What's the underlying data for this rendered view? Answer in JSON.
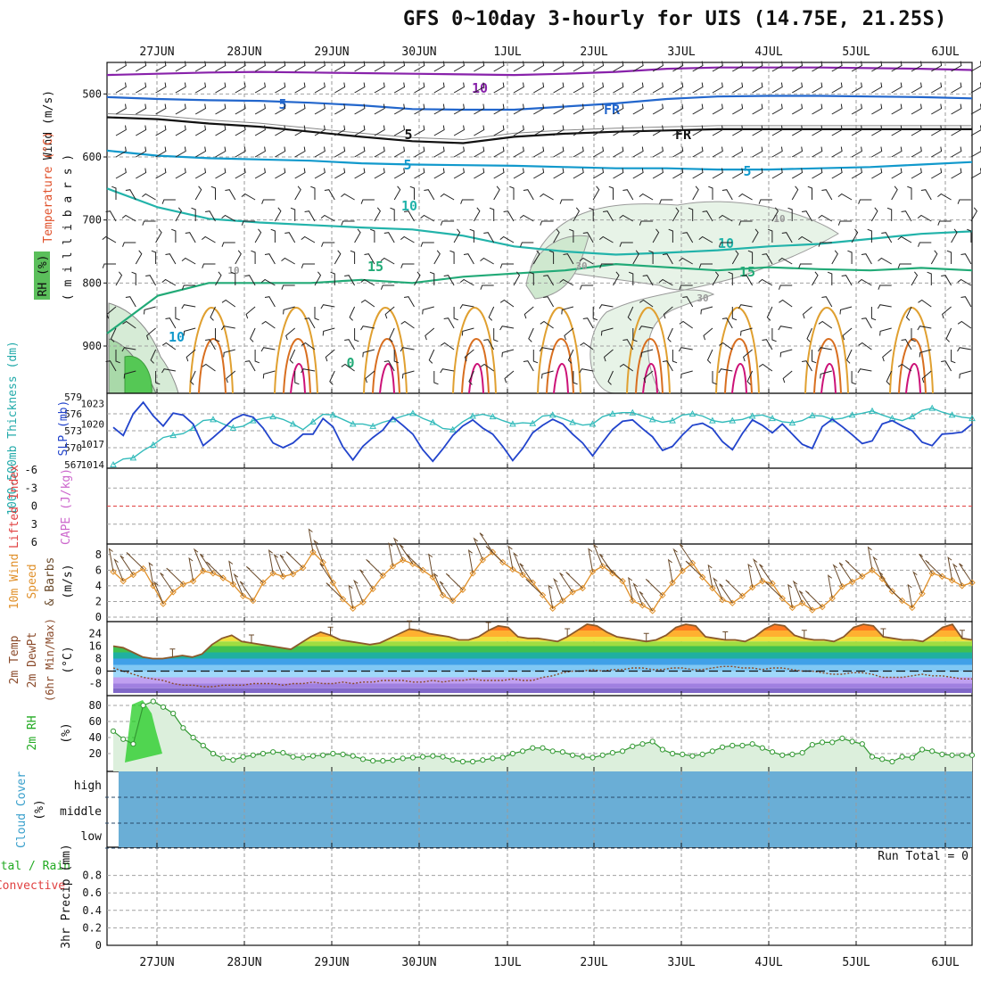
{
  "title": "GFS 0~10day 3-hourly for UIS (14.75E, 21.25S)",
  "date_labels": [
    "27JUN",
    "28JUN",
    "29JUN",
    "30JUN",
    "1JUL",
    "2JUL",
    "3JUL",
    "4JUL",
    "5JUL",
    "6JUL"
  ],
  "panels": {
    "upper": {
      "ylabel_wind": "Wind (m/s)",
      "ylabel_temp": "Temperature (°C)",
      "ylabel_rh": "RH (%)",
      "ylabel_units": "( m i l l i b a r s )",
      "ticks": [
        "500",
        "600",
        "700",
        "800",
        "900"
      ],
      "contour_labels": [
        "10",
        "5",
        "5",
        "FR",
        "FR",
        "5",
        "5",
        "10",
        "10",
        "15",
        "15",
        "10",
        "10",
        "30",
        "30",
        "10",
        "0"
      ]
    },
    "thickness": {
      "ylabel_left": "1000-500mb Thickness (dm)",
      "ylabel_right": "SLP (mb)",
      "ticks_left": [
        "579",
        "576",
        "573",
        "570",
        "567"
      ],
      "ticks_right": [
        "1023",
        "1020",
        "1017",
        "1014"
      ]
    },
    "cape": {
      "ylabel_left": "Lifted Index",
      "ylabel_right": "CAPE (J/kg)",
      "ticks": [
        "-6",
        "-3",
        "0",
        "3",
        "6"
      ]
    },
    "wind10": {
      "ylabel_1": "10m Wind",
      "ylabel_2": "Speed",
      "ylabel_3": "& Barbs",
      "ylabel_units": "(m/s)",
      "ticks": [
        "8",
        "6",
        "4",
        "2",
        "0"
      ]
    },
    "temp": {
      "ylabel_1": "2m Temp",
      "ylabel_2": "2m DewPt",
      "ylabel_3": "(6hr Min/Max)",
      "ylabel_units": "(°C)",
      "ticks": [
        "24",
        "16",
        "8",
        "0",
        "-8"
      ]
    },
    "rh": {
      "ylabel": "2m RH",
      "ylabel_units": "(%)",
      "ticks": [
        "80",
        "60",
        "40",
        "20"
      ]
    },
    "cloud": {
      "ylabel": "Cloud Cover",
      "ylabel_units": "(%)",
      "ticks": [
        "high",
        "middle",
        "low"
      ]
    },
    "precip": {
      "ylabel_1": "Total / Rain",
      "ylabel_2": "Convective",
      "ylabel_3": "3hr Precip (mm)",
      "ticks": [
        "0.8",
        "0.6",
        "0.4",
        "0.2",
        "0"
      ],
      "run_total": "Run Total = 0"
    }
  },
  "chart_data": [
    {
      "type": "line",
      "name": "thickness_slp",
      "x_unit": "3-hourly steps",
      "series": [
        {
          "name": "1000-500mb Thickness (dm)",
          "color": "#33bbbb",
          "values": [
            567.0,
            568.0,
            568.2,
            569.5,
            570.5,
            571.8,
            572.2,
            572.5,
            573.5,
            574.8,
            575.0,
            574.2,
            573.5,
            573.8,
            574.8,
            575.2,
            575.5,
            575.0,
            574.2,
            573.2,
            574.6,
            575.9,
            575.8,
            575.0,
            574.2,
            574.2,
            573.8,
            574.5,
            575.0,
            575.6,
            576.1,
            575.2,
            574.5,
            573.4,
            573.2,
            574.6,
            575.6,
            575.9,
            575.5,
            574.8,
            574.2,
            574.4,
            574.3,
            575.6,
            575.8,
            575.2,
            574.5,
            574.0,
            574.2,
            575.5,
            576.0,
            576.2,
            576.2,
            575.6,
            575.0,
            574.5,
            574.8,
            575.8,
            576.0,
            575.6,
            574.8,
            574.5,
            574.8,
            575.0,
            575.6,
            575.8,
            575.2,
            574.6,
            574.4,
            574.8,
            575.7,
            575.6,
            575.0,
            575.2,
            575.8,
            576.1,
            576.5,
            575.8,
            575.2,
            574.8,
            575.5,
            576.6,
            577.0,
            576.3,
            575.8,
            575.4,
            575.2
          ]
        },
        {
          "name": "SLP (mb)",
          "color": "#2244cc",
          "values": [
            1019.5,
            1018.3,
            1021.5,
            1023.2,
            1021.2,
            1019.7,
            1021.6,
            1021.3,
            1020.0,
            1016.8,
            1018.0,
            1019.3,
            1020.7,
            1021.4,
            1021.0,
            1019.4,
            1017.2,
            1016.5,
            1017.2,
            1018.5,
            1018.5,
            1020.8,
            1019.6,
            1016.6,
            1014.7,
            1016.7,
            1018.0,
            1019.1,
            1021.0,
            1019.8,
            1018.5,
            1016.2,
            1014.5,
            1016.3,
            1018.3,
            1019.7,
            1020.6,
            1019.4,
            1018.5,
            1016.7,
            1014.6,
            1016.4,
            1018.7,
            1019.8,
            1020.7,
            1020.0,
            1018.5,
            1017.2,
            1015.3,
            1017.3,
            1019.2,
            1020.4,
            1020.6,
            1019.3,
            1018.1,
            1016.1,
            1016.7,
            1018.4,
            1019.8,
            1020.1,
            1019.3,
            1017.4,
            1016.2,
            1018.6,
            1020.6,
            1019.8,
            1018.7,
            1020.0,
            1018.5,
            1017.0,
            1016.4,
            1019.6,
            1020.7,
            1019.6,
            1018.4,
            1017.1,
            1017.5,
            1020.0,
            1020.5,
            1019.7,
            1019.0,
            1017.3,
            1016.8,
            1018.5,
            1018.6,
            1018.8,
            1020.0
          ]
        }
      ],
      "ylim_left": [
        567,
        579
      ],
      "ylim_right": [
        1014,
        1024
      ]
    },
    {
      "type": "line",
      "name": "wind10",
      "series": [
        {
          "name": "10m Wind Speed (m/s)",
          "color": "#e0902a",
          "values": [
            5.8,
            4.6,
            5.4,
            6.2,
            4.0,
            1.7,
            3.2,
            4.2,
            4.6,
            5.9,
            5.6,
            5.0,
            4.2,
            2.7,
            2.1,
            4.4,
            5.6,
            5.2,
            5.5,
            6.3,
            8.3,
            7.0,
            4.4,
            2.3,
            1.1,
            1.9,
            3.6,
            5.3,
            6.5,
            7.3,
            6.8,
            6.0,
            5.1,
            2.8,
            2.1,
            3.5,
            5.6,
            7.3,
            8.3,
            7.0,
            6.1,
            5.4,
            4.4,
            2.8,
            1.1,
            2.1,
            3.2,
            3.7,
            5.8,
            6.5,
            5.6,
            4.6,
            2.1,
            1.5,
            0.8,
            2.8,
            4.4,
            5.9,
            6.9,
            5.1,
            3.7,
            2.2,
            1.8,
            2.7,
            3.8,
            4.6,
            4.3,
            2.4,
            1.2,
            1.8,
            0.9,
            1.3,
            2.4,
            3.9,
            4.5,
            5.2,
            6.0,
            4.9,
            3.3,
            2.1,
            1.2,
            3.0,
            5.6,
            5.2,
            4.7,
            4.0,
            4.4
          ]
        }
      ],
      "ylim": [
        0,
        9
      ]
    },
    {
      "type": "area",
      "name": "temperature",
      "series": [
        {
          "name": "2m Temp (°C)",
          "color": "#8b5a2b",
          "values": [
            16,
            15,
            12,
            9,
            8,
            8,
            9,
            10,
            9,
            11,
            17,
            21,
            23,
            19,
            18,
            17,
            16,
            15,
            14,
            18,
            22,
            25,
            23,
            20,
            19,
            18,
            17,
            18,
            21,
            24,
            27,
            26,
            24,
            23,
            22,
            20,
            20,
            22,
            26,
            29,
            28,
            22,
            21,
            21,
            20,
            19,
            22,
            26,
            30,
            29,
            25,
            22,
            21,
            20,
            19,
            20,
            23,
            28,
            30,
            29,
            22,
            21,
            20,
            20,
            19,
            22,
            27,
            30,
            29,
            23,
            21,
            20,
            20,
            19,
            22,
            28,
            30,
            29,
            22,
            21,
            20,
            20,
            19,
            23,
            28,
            30,
            21,
            20
          ]
        },
        {
          "name": "2m DewPt (°C)",
          "color": "#7b6f8a",
          "values": [
            2,
            0,
            -2,
            -4,
            -5,
            -6,
            -8,
            -9,
            -9,
            -10,
            -10,
            -9,
            -9,
            -9,
            -8,
            -8,
            -8,
            -9,
            -8,
            -8,
            -7,
            -8,
            -8,
            -7,
            -8,
            -7,
            -7,
            -6,
            -6,
            -6,
            -7,
            -7,
            -6,
            -7,
            -6,
            -6,
            -5,
            -6,
            -6,
            -6,
            -5,
            -6,
            -6,
            -4,
            -3,
            -1,
            0,
            0,
            1,
            0,
            1,
            1,
            2,
            2,
            1,
            1,
            2,
            2,
            1,
            1,
            2,
            3,
            3,
            2,
            2,
            1,
            2,
            2,
            1,
            0,
            0,
            -1,
            -2,
            -2,
            -1,
            -1,
            -2,
            -4,
            -4,
            -4,
            -3,
            -2,
            -3,
            -3,
            -4,
            -5,
            -5
          ]
        }
      ],
      "ylim": [
        -14,
        30
      ]
    },
    {
      "type": "area",
      "name": "rh2m",
      "series": [
        {
          "name": "2m RH (%)",
          "color": "#339933",
          "values": [
            48,
            38,
            32,
            80,
            85,
            78,
            70,
            52,
            40,
            30,
            20,
            14,
            12,
            16,
            18,
            20,
            22,
            21,
            16,
            15,
            17,
            18,
            20,
            19,
            17,
            13,
            11,
            11,
            12,
            14,
            15,
            16,
            17,
            16,
            12,
            10,
            10,
            12,
            14,
            15,
            20,
            23,
            27,
            27,
            23,
            22,
            18,
            16,
            15,
            18,
            21,
            23,
            29,
            32,
            35,
            25,
            20,
            19,
            17,
            19,
            23,
            28,
            30,
            30,
            32,
            27,
            22,
            18,
            19,
            21,
            31,
            34,
            34,
            39,
            35,
            32,
            16,
            13,
            10,
            16,
            15,
            25,
            23,
            19,
            18,
            18,
            18
          ]
        }
      ],
      "ylim": [
        0,
        90
      ]
    },
    {
      "type": "area",
      "name": "precip",
      "series": [
        {
          "name": "3hr Precip (mm)",
          "values": [
            0,
            0,
            0,
            0,
            0,
            0,
            0,
            0,
            0,
            0
          ]
        }
      ],
      "ylim": [
        0,
        1
      ]
    },
    {
      "type": "line",
      "name": "upper_contours",
      "series": [
        {
          "name": "-10 °C",
          "color": "#8822aa",
          "values": [
            470,
            468,
            466,
            465,
            466,
            467,
            468,
            469,
            470,
            468,
            465,
            460,
            458,
            458,
            458,
            459,
            460,
            462
          ]
        },
        {
          "name": "-5 °C",
          "color": "#2266cc",
          "values": [
            505,
            508,
            510,
            511,
            514,
            518,
            524,
            525,
            525,
            520,
            515,
            508,
            504,
            503,
            503,
            504,
            505,
            507
          ]
        },
        {
          "name": "0 °C (FR)",
          "color": "#111111",
          "values": [
            537,
            540,
            547,
            552,
            560,
            568,
            575,
            578,
            568,
            563,
            560,
            558,
            556,
            556,
            556,
            556,
            556,
            556
          ]
        },
        {
          "name": "5 °C",
          "color": "#1199cc",
          "values": [
            590,
            598,
            602,
            604,
            606,
            610,
            612,
            613,
            614,
            616,
            618,
            618,
            620,
            620,
            618,
            616,
            612,
            608
          ]
        },
        {
          "name": "10 °C",
          "color": "#22b3aa",
          "values": [
            650,
            680,
            698,
            704,
            708,
            712,
            715,
            725,
            742,
            750,
            755,
            752,
            748,
            742,
            738,
            730,
            722,
            718
          ]
        },
        {
          "name": "15 °C",
          "color": "#22aa77",
          "values": [
            880,
            820,
            800,
            800,
            800,
            795,
            800,
            790,
            785,
            780,
            770,
            775,
            780,
            775,
            778,
            780,
            776,
            780
          ]
        }
      ],
      "ylim": [
        450,
        975
      ]
    }
  ]
}
